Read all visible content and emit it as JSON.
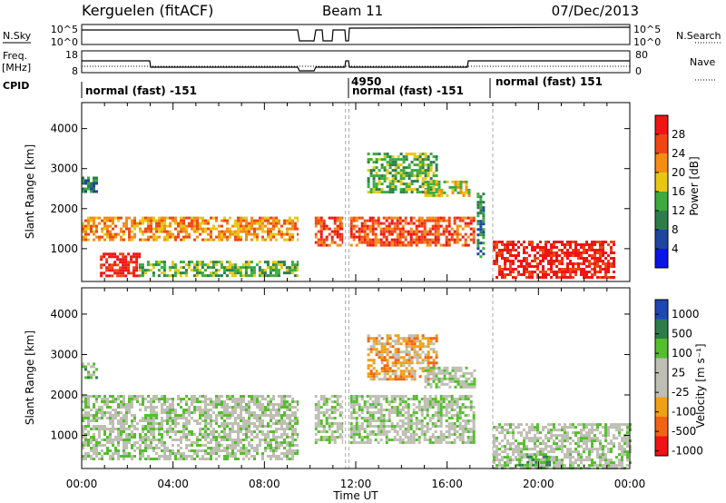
{
  "header": {
    "station": "Kerguelen (fitACF)",
    "beam": "Beam 11",
    "date": "07/Dec/2013"
  },
  "top_panel": {
    "left_labels": [
      "N.Sky",
      "Freq.",
      "[MHz]",
      "CPID"
    ],
    "nsky_ticks": [
      "10^5",
      "10^0"
    ],
    "freq_ticks": [
      "18",
      "8"
    ],
    "right_labels": [
      "N.Search",
      "Nave"
    ],
    "nsearch_ticks": [
      "10^5",
      "10^0"
    ],
    "nave_ticks": [
      "80",
      "0"
    ],
    "cpid_labels": [
      "normal (fast) -151",
      "4950",
      "normal (fast) -151",
      "normal (fast) 151"
    ]
  },
  "colors": {
    "power": [
      "#0a14e6",
      "#1e46a0",
      "#2d7d4b",
      "#3caa3c",
      "#e6c814",
      "#f58c14",
      "#f04614",
      "#f01414"
    ],
    "velocity": [
      "#1e46b4",
      "#2d7d4b",
      "#55be2d",
      "#bebeb4",
      "#bebeb4",
      "#f0a014",
      "#f06414",
      "#f01414"
    ],
    "ground_scatter": "#bebeb4"
  },
  "chart_data": [
    {
      "type": "heatmap",
      "quantity": "Power",
      "ylabel": "Slant Range [km]",
      "xlabel": "Time UT",
      "x_ticks": [
        "00:00",
        "04:00",
        "08:00",
        "12:00",
        "16:00",
        "20:00",
        "00:00"
      ],
      "y_ticks": [
        "1000",
        "2000",
        "3000",
        "4000"
      ],
      "xlim_hours": [
        0,
        24
      ],
      "ylim_km": [
        180,
        4650
      ],
      "colorbar_label": "Power [dB]",
      "colorbar_ticks": [
        "28",
        "24",
        "20",
        "16",
        "12",
        "8",
        "4"
      ],
      "colorbar_levels": [
        0,
        4,
        8,
        12,
        16,
        20,
        24,
        28,
        32
      ],
      "data_gaps_hours": [
        [
          9.5,
          10.2
        ],
        [
          11.45,
          11.75
        ]
      ],
      "echo_regions": [
        {
          "t": [
            0.0,
            0.6
          ],
          "range_km": [
            2400,
            2800
          ],
          "level": 2
        },
        {
          "t": [
            0.0,
            9.5
          ],
          "range_km": [
            1200,
            1800
          ],
          "level": 5
        },
        {
          "t": [
            0.8,
            2.5
          ],
          "range_km": [
            350,
            900
          ],
          "level": 7
        },
        {
          "t": [
            2.5,
            9.5
          ],
          "range_km": [
            300,
            700
          ],
          "level": 3
        },
        {
          "t": [
            10.2,
            17.2
          ],
          "range_km": [
            1100,
            1800
          ],
          "level": 6
        },
        {
          "t": [
            12.5,
            15.5
          ],
          "range_km": [
            2400,
            3400
          ],
          "level": 3
        },
        {
          "t": [
            15.0,
            17.0
          ],
          "range_km": [
            2300,
            2700
          ],
          "level": 4
        },
        {
          "t": [
            17.3,
            17.6
          ],
          "range_km": [
            800,
            2400
          ],
          "level": 2
        },
        {
          "t": [
            18.0,
            23.3
          ],
          "range_km": [
            250,
            1200
          ],
          "level": 7
        }
      ]
    },
    {
      "type": "heatmap",
      "quantity": "Velocity",
      "ylabel": "Slant Range [km]",
      "xlabel": "Time UT",
      "x_ticks": [
        "00:00",
        "04:00",
        "08:00",
        "12:00",
        "16:00",
        "20:00",
        "00:00"
      ],
      "y_ticks": [
        "1000",
        "2000",
        "3000",
        "4000"
      ],
      "xlim_hours": [
        0,
        24
      ],
      "ylim_km": [
        180,
        4650
      ],
      "colorbar_label": "Velocity [m s⁻¹]",
      "colorbar_ticks": [
        "1000",
        "500",
        "100",
        "25",
        "-25",
        "-100",
        "-500",
        "-1000"
      ],
      "data_gaps_hours": [
        [
          9.5,
          10.2
        ],
        [
          11.45,
          11.75
        ]
      ],
      "echo_regions": [
        {
          "t": [
            0.0,
            0.6
          ],
          "range_km": [
            2400,
            2800
          ],
          "level": 2
        },
        {
          "t": [
            0.0,
            9.5
          ],
          "range_km": [
            400,
            2000
          ],
          "level": 3
        },
        {
          "t": [
            10.2,
            17.2
          ],
          "range_km": [
            800,
            2000
          ],
          "level": 3
        },
        {
          "t": [
            12.5,
            15.5
          ],
          "range_km": [
            2400,
            3500
          ],
          "level": 5
        },
        {
          "t": [
            15.0,
            17.2
          ],
          "range_km": [
            2200,
            2700
          ],
          "level": 3
        },
        {
          "t": [
            18.0,
            24.0
          ],
          "range_km": [
            200,
            1300
          ],
          "level": 3
        },
        {
          "t": [
            19.0,
            20.5
          ],
          "range_km": [
            200,
            500
          ],
          "level": 2
        }
      ]
    }
  ]
}
